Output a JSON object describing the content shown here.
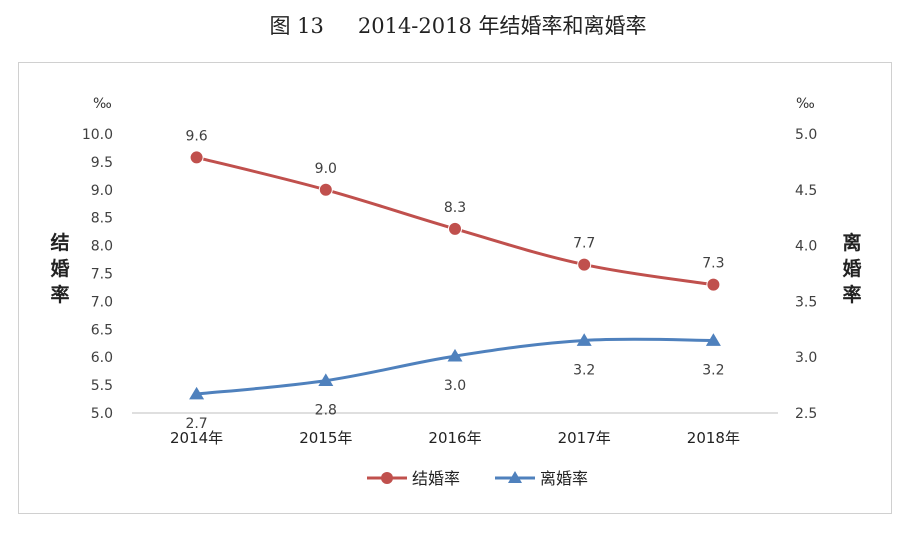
{
  "figure": {
    "number": "图 13",
    "caption": "2014-2018 年结婚率和离婚率"
  },
  "colors": {
    "marriage": "#C0504D",
    "divorce": "#4F81BD",
    "axis": "#bfbfbf",
    "text": "#404040"
  },
  "chart_data": {
    "type": "line",
    "title": "2014-2018 年结婚率和离婚率",
    "categories": [
      "2014年",
      "2015年",
      "2016年",
      "2017年",
      "2018年"
    ],
    "y_left": {
      "label": "结婚率",
      "unit": "‰",
      "range": [
        5.0,
        10.0
      ],
      "ticks": [
        "5.0",
        "5.5",
        "6.0",
        "6.5",
        "7.0",
        "7.5",
        "8.0",
        "8.5",
        "9.0",
        "9.5",
        "10.0"
      ]
    },
    "y_right": {
      "label": "离婚率",
      "unit": "‰",
      "range": [
        2.5,
        5.0
      ],
      "ticks": [
        "2.5",
        "3.0",
        "3.5",
        "4.0",
        "4.5",
        "5.0"
      ]
    },
    "series": [
      {
        "name": "结婚率",
        "axis": "left",
        "marker": "circle",
        "values": [
          9.58,
          9.0,
          8.3,
          7.66,
          7.3
        ],
        "labels": [
          "9.6",
          "9.0",
          "8.3",
          "7.7",
          "7.3"
        ]
      },
      {
        "name": "离婚率",
        "axis": "right",
        "marker": "triangle",
        "values": [
          2.67,
          2.79,
          3.01,
          3.15,
          3.15
        ],
        "labels": [
          "2.7",
          "2.8",
          "3.0",
          "3.2",
          "3.2"
        ]
      }
    ],
    "legend": "bottom-center",
    "grid": false
  }
}
